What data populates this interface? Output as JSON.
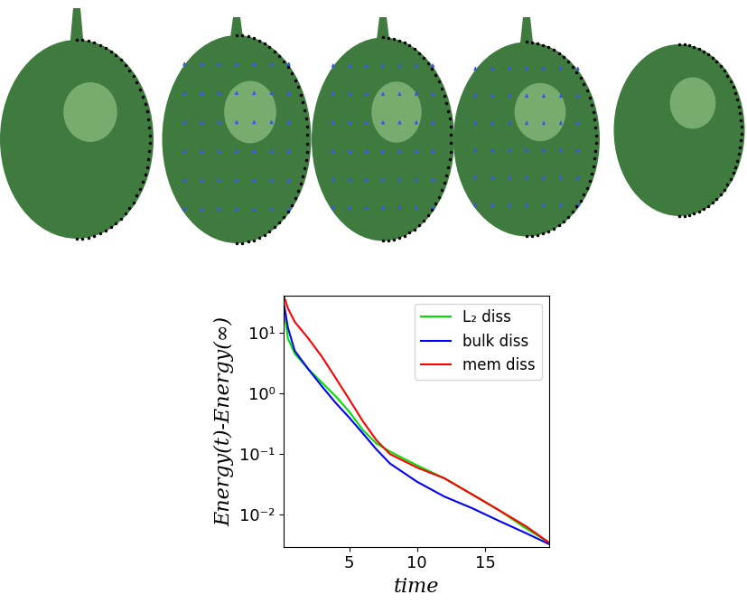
{
  "chart_data": {
    "type": "line",
    "x_label": "time",
    "y_label": "Energy(t)-Energy(∞)",
    "x": [
      0.2,
      0.5,
      1,
      2,
      3,
      4,
      5,
      6,
      7,
      8,
      10,
      12,
      14,
      16,
      18,
      19.7
    ],
    "series": [
      {
        "name": "L₂ diss",
        "color": "#00e000",
        "values": [
          25,
          8,
          4.5,
          2.5,
          1.5,
          0.9,
          0.5,
          0.25,
          0.15,
          0.11,
          0.065,
          0.04,
          0.022,
          0.012,
          0.006,
          0.0035
        ]
      },
      {
        "name": "bulk diss",
        "color": "#0000ff",
        "values": [
          30,
          12,
          5,
          2.5,
          1.3,
          0.7,
          0.4,
          0.22,
          0.12,
          0.07,
          0.035,
          0.02,
          0.013,
          0.008,
          0.005,
          0.0033
        ]
      },
      {
        "name": "mem diss",
        "color": "#ff0000",
        "values": [
          40,
          25,
          15,
          8,
          4,
          1.8,
          0.8,
          0.35,
          0.17,
          0.1,
          0.06,
          0.04,
          0.022,
          0.012,
          0.0065,
          0.0035
        ]
      }
    ],
    "log": "y",
    "legend": "upper right",
    "xlim": [
      0.2,
      19.7
    ],
    "xticks": [
      5,
      10,
      15
    ],
    "ylim": [
      0.003,
      40
    ],
    "yticks": [
      {
        "value": 0.01,
        "label": "10⁻²"
      },
      {
        "value": 0.1,
        "label": "10⁻¹"
      },
      {
        "value": 1,
        "label": "10⁰"
      },
      {
        "value": 10,
        "label": "10¹"
      }
    ]
  }
}
